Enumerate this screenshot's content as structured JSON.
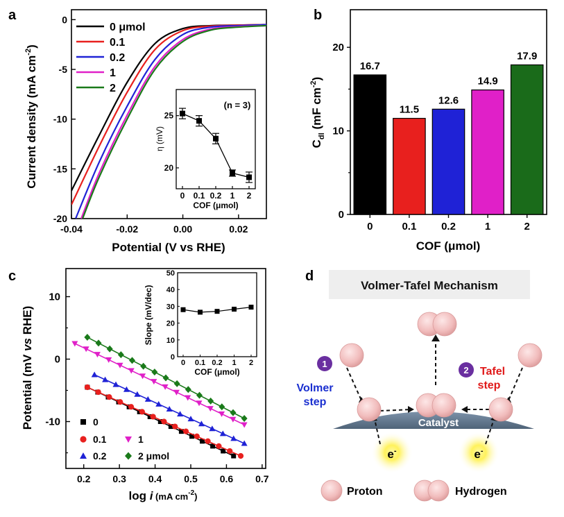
{
  "panel_letters": [
    "a",
    "b",
    "c",
    "d"
  ],
  "chart_data": [
    {
      "id": "a",
      "type": "line",
      "xlabel": "Potential (V vs RHE)",
      "ylabel": "Current density (mA cm",
      "ylabel_sup": "-2",
      "ylabel_end": ")",
      "xlim": [
        -0.04,
        0.03
      ],
      "ylim": [
        -20,
        1
      ],
      "xticks": [
        -0.04,
        -0.02,
        0.0,
        0.02
      ],
      "xtick_labels": [
        "-0.04",
        "-0.02",
        "0.00",
        "0.02"
      ],
      "yticks": [
        0,
        -5,
        -10,
        -15,
        -20
      ],
      "ytick_labels": [
        "0",
        "-5",
        "-10",
        "-15",
        "-20"
      ],
      "legend_position": "top-left",
      "series": [
        {
          "name": "0 μmol",
          "color": "#000000",
          "x": [
            -0.04,
            -0.03,
            -0.02,
            -0.01,
            0.0,
            0.01,
            0.02,
            0.03
          ],
          "y": [
            -17.2,
            -11.6,
            -6.3,
            -2.4,
            -0.9,
            -0.6,
            -0.55,
            -0.5
          ]
        },
        {
          "name": "0.1",
          "color": "#e8201e",
          "x": [
            -0.04,
            -0.03,
            -0.02,
            -0.01,
            0.0,
            0.01,
            0.02,
            0.03
          ],
          "y": [
            -18.6,
            -12.7,
            -7.3,
            -3.0,
            -1.1,
            -0.65,
            -0.55,
            -0.5
          ]
        },
        {
          "name": "0.2",
          "color": "#1f22d6",
          "x": [
            -0.0385,
            -0.03,
            -0.02,
            -0.01,
            0.0,
            0.01,
            0.02,
            0.03
          ],
          "y": [
            -20,
            -14.3,
            -8.7,
            -4.0,
            -1.5,
            -0.75,
            -0.6,
            -0.5
          ]
        },
        {
          "name": "1",
          "color": "#e020c8",
          "x": [
            -0.0365,
            -0.03,
            -0.02,
            -0.01,
            0.0,
            0.01,
            0.02,
            0.03
          ],
          "y": [
            -20,
            -15.4,
            -9.6,
            -4.7,
            -2.0,
            -0.95,
            -0.7,
            -0.6
          ]
        },
        {
          "name": "2",
          "color": "#1a7a1a",
          "x": [
            -0.036,
            -0.03,
            -0.02,
            -0.01,
            0.0,
            0.01,
            0.02,
            0.03
          ],
          "y": [
            -20,
            -15.8,
            -10.0,
            -5.0,
            -2.2,
            -1.05,
            -0.75,
            -0.6
          ]
        }
      ],
      "inset": {
        "type": "scatter",
        "categories": [
          "0",
          "0.1",
          "0.2",
          "1",
          "2"
        ],
        "values": [
          25.2,
          24.5,
          22.8,
          19.5,
          19.1
        ],
        "errors": [
          0.5,
          0.5,
          0.5,
          0.3,
          0.5
        ],
        "ylim": [
          18,
          27.5
        ],
        "yticks": [
          20,
          25
        ],
        "ylabel": "η (mV)",
        "xlabel": "COF (μmol)",
        "annotation": "(n = 3)",
        "color": "#000000"
      }
    },
    {
      "id": "b",
      "type": "bar",
      "categories": [
        "0",
        "0.1",
        "0.2",
        "1",
        "2"
      ],
      "values": [
        16.7,
        11.5,
        12.6,
        14.9,
        17.9
      ],
      "value_labels": [
        "16.7",
        "11.5",
        "12.6",
        "14.9",
        "17.9"
      ],
      "colors": [
        "#000000",
        "#e8201e",
        "#1f22d6",
        "#e020c8",
        "#1a6b1a"
      ],
      "xlabel": "COF (μmol)",
      "ylabel_main": "C",
      "ylabel_sub": "dl",
      "ylabel_unit": " (mF cm",
      "ylabel_sup": "-2",
      "ylabel_end": ")",
      "ylim": [
        0,
        24.5
      ],
      "yticks": [
        0,
        10,
        20
      ],
      "ytick_labels": [
        "0",
        "10",
        "20"
      ]
    },
    {
      "id": "c",
      "type": "scatter",
      "xlabel_main": "log ",
      "xlabel_var": "i",
      "xlabel_unit": " (mA cm",
      "xlabel_sup": "-2",
      "xlabel_end": ")",
      "ylabel_main": "Potential (mV ",
      "ylabel_var": "vs",
      "ylabel_end": " RHE)",
      "xlim": [
        0.15,
        0.71
      ],
      "ylim": [
        -17.5,
        14.5
      ],
      "xticks": [
        0.2,
        0.3,
        0.4,
        0.5,
        0.6,
        0.7
      ],
      "xtick_labels": [
        "0.2",
        "0.3",
        "0.4",
        "0.5",
        "0.6",
        "0.7"
      ],
      "yticks": [
        10,
        0,
        -10
      ],
      "ytick_labels": [
        "10",
        "0",
        "-10"
      ],
      "legend_position": "bottom-left",
      "series": [
        {
          "name": "0",
          "color": "#000000",
          "marker": "square",
          "x_start": 0.21,
          "x_end": 0.62,
          "y_start": -4.5,
          "y_end": -15.5,
          "n": 15
        },
        {
          "name": "0.1",
          "color": "#e8201e",
          "marker": "circle",
          "x_start": 0.21,
          "x_end": 0.64,
          "y_start": -4.5,
          "y_end": -15.5,
          "n": 15
        },
        {
          "name": "0.2",
          "color": "#1f22d6",
          "marker": "triangle-up",
          "x_start": 0.23,
          "x_end": 0.65,
          "y_start": -2.5,
          "y_end": -13.5,
          "n": 15
        },
        {
          "name": "1",
          "color": "#e020c8",
          "marker": "triangle-down",
          "x_start": 0.175,
          "x_end": 0.65,
          "y_start": 2.5,
          "y_end": -10.5,
          "n": 16
        },
        {
          "name": "2 μmol",
          "color": "#1a7a1a",
          "marker": "diamond",
          "x_start": 0.21,
          "x_end": 0.65,
          "y_start": 3.5,
          "y_end": -9.5,
          "n": 15
        }
      ],
      "inset": {
        "type": "line",
        "categories": [
          "0",
          "0.1",
          "0.2",
          "1",
          "2"
        ],
        "values": [
          28.0,
          26.5,
          27.0,
          28.3,
          29.5
        ],
        "ylim": [
          0,
          50
        ],
        "yticks": [
          0,
          10,
          20,
          30,
          40,
          50
        ],
        "ylabel": "Slope (mV/dec)",
        "xlabel": "COF (μmol)",
        "color": "#000000"
      }
    }
  ],
  "diagram": {
    "title": "Volmer-Tafel Mechanism",
    "step1_number": "1",
    "step1_label_line1": "Volmer",
    "step1_label_line2": "step",
    "step2_number": "2",
    "step2_label_line1": "Tafel",
    "step2_label_line2": "step",
    "catalyst_label": "Catalyst",
    "electron_label": "e",
    "electron_sup": "-",
    "legend_proton": "Proton",
    "legend_hydrogen": "Hydrogen",
    "colors": {
      "sphere": "#f2c3c3",
      "step_badge": "#6a2fa0",
      "volmer": "#1a2fd0",
      "tafel": "#e01a1a",
      "catalyst": "#6a7f95",
      "electron_glow": "#ffee33"
    }
  }
}
